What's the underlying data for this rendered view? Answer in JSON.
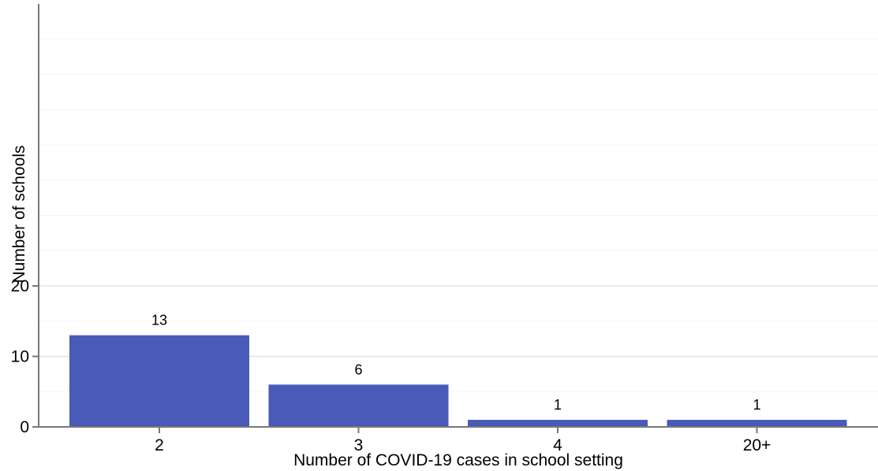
{
  "chart_data": {
    "type": "bar",
    "title": "",
    "categories": [
      "2",
      "3",
      "4",
      "20+"
    ],
    "values": [
      13,
      6,
      1,
      1
    ],
    "bar_labels": [
      "13",
      "6",
      "1",
      "1"
    ],
    "xlabel": "Number of COVID-19 cases in school setting",
    "ylabel": "Number of schools",
    "y_ticks": [
      0,
      10,
      20
    ],
    "ylim": [
      0,
      60
    ],
    "minor_grid_step": 5,
    "grid": "horizontal",
    "legend_position": "none",
    "colors": {
      "bar_fill": "#4a5ab8",
      "axis_line": "#787878",
      "major_grid": "#e3e3e3",
      "minor_grid": "#f5f5f5",
      "text": "#000000",
      "background": "#ffffff"
    }
  }
}
